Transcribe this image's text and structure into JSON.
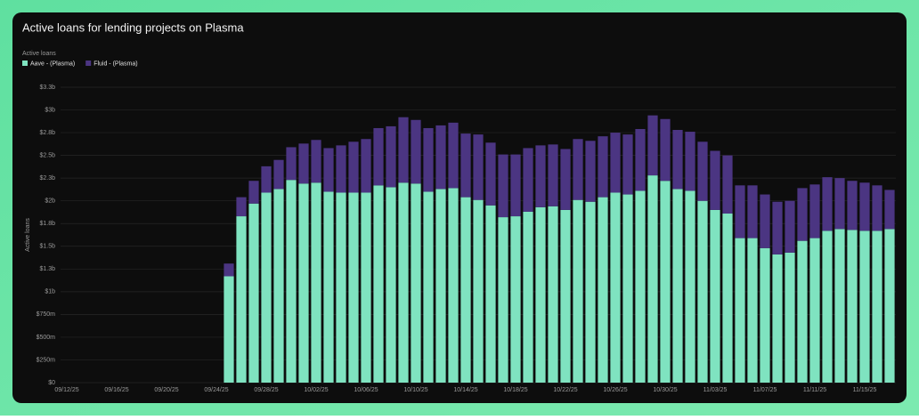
{
  "chart_data": {
    "type": "stacked_bar",
    "title": "Active loans for lending projects on Plasma",
    "legend_title": "Active loans",
    "y_label": "Active loans",
    "legend": "top-left",
    "grid": true,
    "categories": [
      "09/12/25",
      null,
      null,
      null,
      "09/16/25",
      null,
      null,
      null,
      "09/20/25",
      null,
      null,
      null,
      "09/24/25",
      null,
      null,
      null,
      "09/28/25",
      null,
      null,
      null,
      "10/02/25",
      null,
      null,
      null,
      "10/06/25",
      null,
      null,
      null,
      "10/10/25",
      null,
      null,
      null,
      "10/14/25",
      null,
      null,
      null,
      "10/18/25",
      null,
      null,
      null,
      "10/22/25",
      null,
      null,
      null,
      "10/26/25",
      null,
      null,
      null,
      "10/30/25",
      null,
      null,
      null,
      "11/03/25",
      null,
      null,
      null,
      "11/07/25",
      null,
      null,
      null,
      "11/11/25",
      null,
      null,
      null,
      "11/15/25",
      null,
      null
    ],
    "series": [
      {
        "name": "Aave - (Plasma)",
        "color": "#7fe3c0",
        "values": [
          null,
          null,
          null,
          null,
          null,
          null,
          null,
          null,
          null,
          null,
          null,
          null,
          null,
          1.17,
          1.83,
          1.97,
          2.09,
          2.13,
          2.23,
          2.19,
          2.2,
          2.1,
          2.09,
          2.09,
          2.09,
          2.17,
          2.15,
          2.2,
          2.19,
          2.1,
          2.13,
          2.14,
          2.04,
          2.01,
          1.95,
          1.82,
          1.83,
          1.88,
          1.93,
          1.94,
          1.9,
          2.01,
          1.99,
          2.04,
          2.09,
          2.07,
          2.11,
          2.28,
          2.22,
          2.13,
          2.11,
          2.0,
          1.9,
          1.86,
          1.59,
          1.59,
          1.48,
          1.41,
          1.43,
          1.56,
          1.59,
          1.67,
          1.69,
          1.68,
          1.67,
          1.67,
          1.69
        ]
      },
      {
        "name": "Fluid - (Plasma)",
        "color": "#4b3582",
        "values": [
          null,
          null,
          null,
          null,
          null,
          null,
          null,
          null,
          null,
          null,
          null,
          null,
          null,
          0.14,
          0.21,
          0.25,
          0.29,
          0.32,
          0.36,
          0.44,
          0.47,
          0.48,
          0.52,
          0.56,
          0.59,
          0.63,
          0.67,
          0.72,
          0.7,
          0.7,
          0.7,
          0.72,
          0.7,
          0.72,
          0.69,
          0.69,
          0.68,
          0.7,
          0.68,
          0.68,
          0.67,
          0.67,
          0.67,
          0.67,
          0.66,
          0.66,
          0.68,
          0.66,
          0.68,
          0.65,
          0.65,
          0.65,
          0.65,
          0.64,
          0.58,
          0.58,
          0.59,
          0.58,
          0.57,
          0.58,
          0.59,
          0.59,
          0.56,
          0.54,
          0.53,
          0.5,
          0.43
        ]
      }
    ],
    "ylim": [
      0,
      3.25
    ],
    "yticks": [
      {
        "value": 0,
        "label": "$0"
      },
      {
        "value": 0.25,
        "label": "$250m"
      },
      {
        "value": 0.5,
        "label": "$500m"
      },
      {
        "value": 0.75,
        "label": "$750m"
      },
      {
        "value": 1,
        "label": "$1b"
      },
      {
        "value": 1.25,
        "label": "$1.3b"
      },
      {
        "value": 1.5,
        "label": "$1.5b"
      },
      {
        "value": 1.75,
        "label": "$1.8b"
      },
      {
        "value": 2,
        "label": "$2b"
      },
      {
        "value": 2.25,
        "label": "$2.3b"
      },
      {
        "value": 2.5,
        "label": "$2.5b"
      },
      {
        "value": 2.75,
        "label": "$2.8b"
      },
      {
        "value": 3,
        "label": "$3b"
      },
      {
        "value": 3.25,
        "label": "$3.3b"
      }
    ]
  }
}
